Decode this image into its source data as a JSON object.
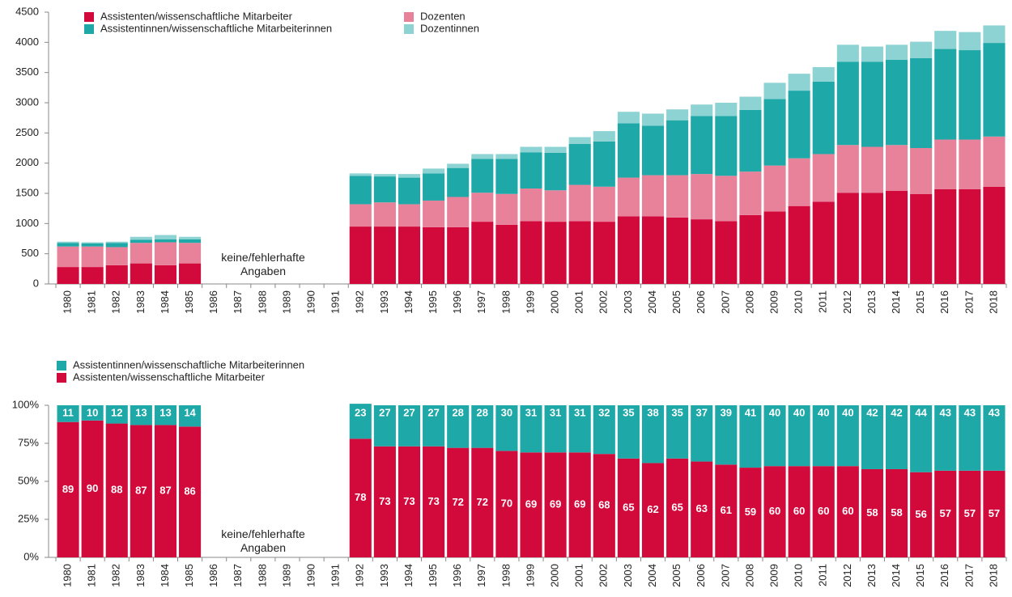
{
  "chart_data": [
    {
      "type": "bar",
      "stacked": true,
      "annotation": "keine/fehlerhafte Angaben",
      "categories": [
        "1980",
        "1981",
        "1982",
        "1983",
        "1984",
        "1985",
        "1986",
        "1987",
        "1988",
        "1989",
        "1990",
        "1991",
        "1992",
        "1993",
        "1994",
        "1995",
        "1996",
        "1997",
        "1998",
        "1999",
        "2000",
        "2001",
        "2002",
        "2003",
        "2004",
        "2005",
        "2006",
        "2007",
        "2008",
        "2009",
        "2010",
        "2011",
        "2012",
        "2013",
        "2014",
        "2015",
        "2016",
        "2017",
        "2018"
      ],
      "ylim": [
        0,
        4500
      ],
      "yticks": [
        0,
        500,
        1000,
        1500,
        2000,
        2500,
        3000,
        3500,
        4000,
        4500
      ],
      "series": [
        {
          "name": "Assistenten/wissenschaftliche Mitarbeiter",
          "color": "#d20a3c",
          "values": [
            280,
            280,
            310,
            340,
            310,
            340,
            null,
            null,
            null,
            null,
            null,
            null,
            950,
            950,
            950,
            940,
            940,
            1030,
            980,
            1040,
            1030,
            1040,
            1030,
            1120,
            1120,
            1100,
            1070,
            1040,
            1140,
            1200,
            1290,
            1360,
            1510,
            1510,
            1540,
            1490,
            1570,
            1570,
            1610
          ]
        },
        {
          "name": "Dozenten",
          "color": "#e8829a",
          "values": [
            340,
            340,
            300,
            340,
            380,
            340,
            null,
            null,
            null,
            null,
            null,
            null,
            370,
            400,
            370,
            440,
            500,
            480,
            510,
            540,
            520,
            600,
            580,
            640,
            680,
            700,
            750,
            750,
            720,
            760,
            790,
            790,
            790,
            760,
            760,
            760,
            820,
            820,
            830
          ]
        },
        {
          "name": "Assistentinnen/wissenschaftliche Mitarbeiterinnen",
          "color": "#1fa8a8",
          "values": [
            60,
            50,
            70,
            50,
            50,
            60,
            null,
            null,
            null,
            null,
            null,
            null,
            470,
            430,
            440,
            450,
            480,
            560,
            580,
            600,
            620,
            680,
            750,
            900,
            820,
            910,
            960,
            990,
            1020,
            1100,
            1120,
            1200,
            1380,
            1410,
            1410,
            1490,
            1500,
            1480,
            1550
          ]
        },
        {
          "name": "Dozentinnen",
          "color": "#8ed3d3",
          "values": [
            20,
            20,
            20,
            50,
            70,
            40,
            null,
            null,
            null,
            null,
            null,
            null,
            40,
            40,
            60,
            80,
            70,
            80,
            80,
            90,
            100,
            110,
            170,
            190,
            200,
            180,
            190,
            220,
            220,
            270,
            280,
            240,
            280,
            250,
            250,
            270,
            300,
            300,
            290
          ]
        }
      ]
    },
    {
      "type": "bar",
      "stacked": true,
      "annotation": "keine/fehlerhafte Angaben",
      "categories": [
        "1980",
        "1981",
        "1982",
        "1983",
        "1984",
        "1985",
        "1986",
        "1987",
        "1988",
        "1989",
        "1990",
        "1991",
        "1992",
        "1993",
        "1994",
        "1995",
        "1996",
        "1997",
        "1998",
        "1999",
        "2000",
        "2001",
        "2002",
        "2003",
        "2004",
        "2005",
        "2006",
        "2007",
        "2008",
        "2009",
        "2010",
        "2011",
        "2012",
        "2013",
        "2014",
        "2015",
        "2016",
        "2017",
        "2018"
      ],
      "ylim": [
        0,
        100
      ],
      "yticks": [
        {
          "value": 0,
          "label": "0%"
        },
        {
          "value": 25,
          "label": "25%"
        },
        {
          "value": 50,
          "label": "50%"
        },
        {
          "value": 75,
          "label": "75%"
        },
        {
          "value": 100,
          "label": "100%"
        }
      ],
      "series": [
        {
          "name": "Assistenten/wissenschaftliche Mitarbeiter",
          "color": "#d20a3c",
          "values": [
            89,
            90,
            88,
            87,
            87,
            86,
            null,
            null,
            null,
            null,
            null,
            null,
            78,
            73,
            73,
            73,
            72,
            72,
            70,
            69,
            69,
            69,
            68,
            65,
            62,
            65,
            63,
            61,
            59,
            60,
            60,
            60,
            60,
            58,
            58,
            56,
            57,
            57,
            57
          ]
        },
        {
          "name": "Assistentinnen/wissenschaftliche Mitarbeiterinnen",
          "color": "#1fa8a8",
          "values": [
            11,
            10,
            12,
            13,
            13,
            14,
            null,
            null,
            null,
            null,
            null,
            null,
            23,
            27,
            27,
            27,
            28,
            28,
            30,
            31,
            31,
            31,
            32,
            35,
            38,
            35,
            37,
            39,
            41,
            40,
            40,
            40,
            40,
            42,
            42,
            44,
            43,
            43,
            43
          ]
        }
      ]
    }
  ]
}
